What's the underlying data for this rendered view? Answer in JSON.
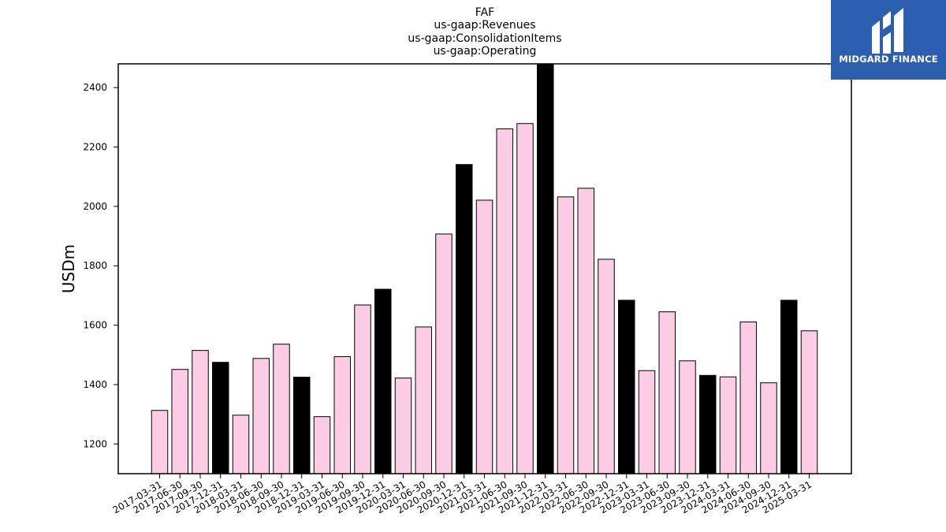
{
  "logo": {
    "text": "MIDGARD FINANCE",
    "color": "#2d5fb0"
  },
  "chart_data": {
    "type": "bar",
    "title_lines": [
      "FAF",
      "us-gaap:Revenues",
      "us-gaap:ConsolidationItems",
      "us-gaap:Operating"
    ],
    "xlabel": "",
    "ylabel": "USDm",
    "ylim": [
      1100,
      2480
    ],
    "yticks": [
      1200,
      1400,
      1600,
      1800,
      2000,
      2200,
      2400
    ],
    "grid": false,
    "colors": {
      "quarter_bar": "#fbcce3",
      "year_end_bar": "#000000",
      "edge": "#000000"
    },
    "categories": [
      "2017-03-31",
      "2017-06-30",
      "2017-09-30",
      "2017-12-31",
      "2018-03-31",
      "2018-06-30",
      "2018-09-30",
      "2018-12-31",
      "2019-03-31",
      "2019-06-30",
      "2019-09-30",
      "2019-12-31",
      "2020-03-31",
      "2020-06-30",
      "2020-09-30",
      "2020-12-31",
      "2021-03-31",
      "2021-06-30",
      "2021-09-30",
      "2021-12-31",
      "2022-03-31",
      "2022-06-30",
      "2022-09-30",
      "2022-12-31",
      "2023-03-31",
      "2023-06-30",
      "2023-09-30",
      "2023-12-31",
      "2024-03-31",
      "2024-06-30",
      "2024-09-30",
      "2024-12-31",
      "2025-03-31"
    ],
    "values": [
      1313,
      1451,
      1515,
      1475,
      1297,
      1488,
      1536,
      1425,
      1292,
      1494,
      1668,
      1721,
      1422,
      1594,
      1907,
      2141,
      2021,
      2261,
      2279,
      2480,
      2032,
      2061,
      1822,
      1684,
      1447,
      1645,
      1480,
      1431,
      1426,
      1611,
      1406,
      1684,
      1581
    ],
    "year_end": [
      false,
      false,
      false,
      true,
      false,
      false,
      false,
      true,
      false,
      false,
      false,
      true,
      false,
      false,
      false,
      true,
      false,
      false,
      false,
      true,
      false,
      false,
      false,
      true,
      false,
      false,
      false,
      true,
      false,
      false,
      false,
      true,
      false
    ]
  }
}
